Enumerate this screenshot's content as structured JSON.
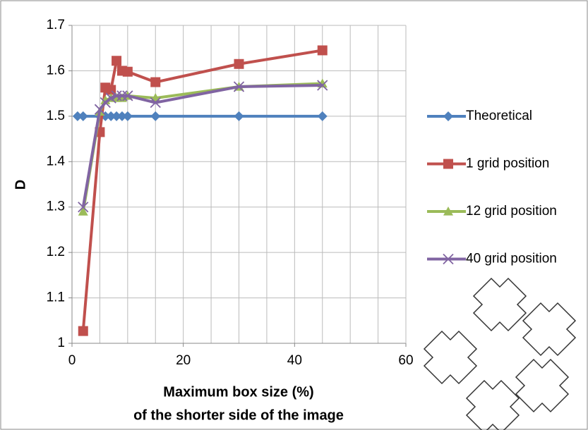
{
  "chart_data": {
    "type": "line",
    "xlabel": [
      "Maximum box size (%)",
      "of the shorter side of the image"
    ],
    "ylabel": "D",
    "x": [
      1,
      2,
      5,
      6,
      7,
      8,
      9,
      10,
      15,
      30,
      45
    ],
    "series": [
      {
        "name": "Theoretical",
        "color": "#4f81bd",
        "marker": "diamond",
        "values": [
          1.5,
          1.5,
          1.5,
          1.5,
          1.5,
          1.5,
          1.5,
          1.5,
          1.5,
          1.5,
          1.5
        ]
      },
      {
        "name": "1 grid position",
        "color": "#c0504d",
        "marker": "square",
        "values": [
          null,
          1.027,
          1.465,
          1.563,
          1.558,
          1.622,
          1.6,
          1.598,
          1.575,
          1.615,
          1.645
        ]
      },
      {
        "name": "12 grid position",
        "color": "#9bbb59",
        "marker": "triangle",
        "values": [
          null,
          1.29,
          1.51,
          1.535,
          1.54,
          1.54,
          1.54,
          1.545,
          1.54,
          1.565,
          1.572
        ]
      },
      {
        "name": "40 grid position",
        "color": "#8064a2",
        "marker": "x",
        "values": [
          null,
          1.3,
          1.515,
          1.53,
          1.54,
          1.545,
          1.545,
          1.545,
          1.53,
          1.565,
          1.568
        ]
      }
    ],
    "xlim": [
      0,
      60
    ],
    "xticks": [
      0,
      20,
      40,
      60
    ],
    "xgrid": [
      5,
      10,
      15,
      20,
      25,
      30,
      35,
      40,
      45,
      50,
      55
    ],
    "ylim": [
      1,
      1.7
    ],
    "yticks": [
      {
        "value": 1,
        "label": "1"
      },
      1.1,
      1.2,
      1.3,
      1.4,
      1.5,
      1.6,
      1.7
    ],
    "grid": true,
    "legend": "right"
  }
}
